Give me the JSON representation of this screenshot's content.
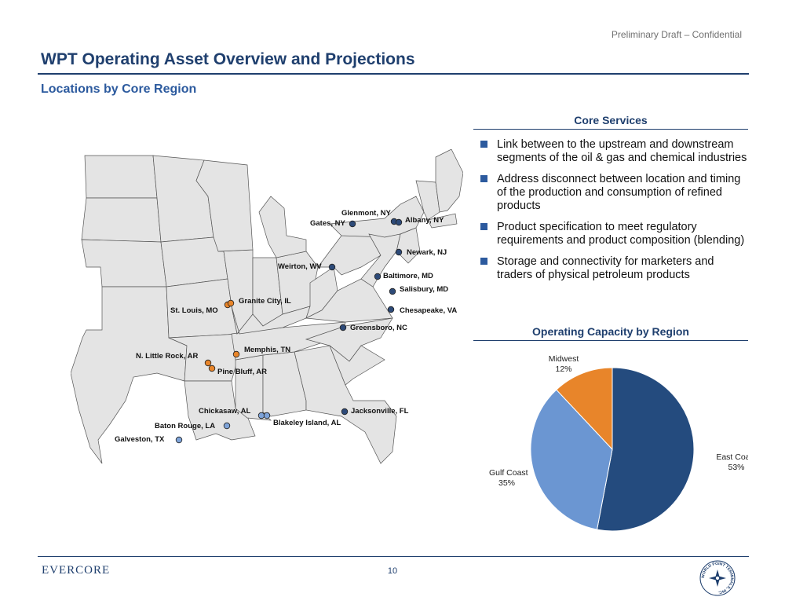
{
  "header": {
    "draft_notice": "Preliminary Draft – Confidential",
    "title": "WPT Operating Asset Overview and Projections",
    "subtitle": "Locations by Core Region"
  },
  "map": {
    "locations": [
      {
        "label": "Glenmont, NY",
        "region": "East Coast"
      },
      {
        "label": "Gates, NY",
        "region": "East Coast"
      },
      {
        "label": "Albany, NY",
        "region": "East Coast"
      },
      {
        "label": "Newark, NJ",
        "region": "East Coast"
      },
      {
        "label": "Weirton, WV",
        "region": "East Coast"
      },
      {
        "label": "Baltimore, MD",
        "region": "East Coast"
      },
      {
        "label": "Salisbury, MD",
        "region": "East Coast"
      },
      {
        "label": "Chesapeake, VA",
        "region": "East Coast"
      },
      {
        "label": "Greensboro, NC",
        "region": "East Coast"
      },
      {
        "label": "Jacksonville, FL",
        "region": "East Coast"
      },
      {
        "label": "St. Louis, MO",
        "region": "Midwest"
      },
      {
        "label": "Granite City, IL",
        "region": "Midwest"
      },
      {
        "label": "Memphis, TN",
        "region": "Midwest"
      },
      {
        "label": "N. Little Rock, AR",
        "region": "Midwest"
      },
      {
        "label": "Pine Bluff, AR",
        "region": "Midwest"
      },
      {
        "label": "Chickasaw, AL",
        "region": "Gulf Coast"
      },
      {
        "label": "Blakeley Island, AL",
        "region": "Gulf Coast"
      },
      {
        "label": "Baton Rouge, LA",
        "region": "Gulf Coast"
      },
      {
        "label": "Galveston, TX",
        "region": "Gulf Coast"
      }
    ]
  },
  "core_services": {
    "heading": "Core Services",
    "items": [
      "Link between to the upstream and downstream segments of the oil & gas and chemical industries",
      "Address disconnect between location and timing of the production and consumption of refined products",
      "Product specification to meet regulatory requirements and product composition (blending)",
      "Storage and connectivity for marketers and traders of physical petroleum products"
    ]
  },
  "capacity": {
    "heading": "Operating Capacity by Region"
  },
  "chart_data": {
    "type": "pie",
    "title": "Operating Capacity by Region",
    "categories": [
      "East Coast",
      "Gulf Coast",
      "Midwest"
    ],
    "values": [
      53,
      35,
      12
    ],
    "value_labels": [
      "53%",
      "35%",
      "12%"
    ],
    "colors": [
      "#244b7e",
      "#6b96d2",
      "#e8852a"
    ]
  },
  "colors": {
    "east_coast": "#2d4a78",
    "midwest": "#e8852a",
    "gulf_coast": "#7ea3d8",
    "brand_blue": "#1f3f6e"
  },
  "footer": {
    "logo": "EVERCORE",
    "page_number": "10",
    "seal_text": "WORLD POINT TERMINALS, INC."
  }
}
